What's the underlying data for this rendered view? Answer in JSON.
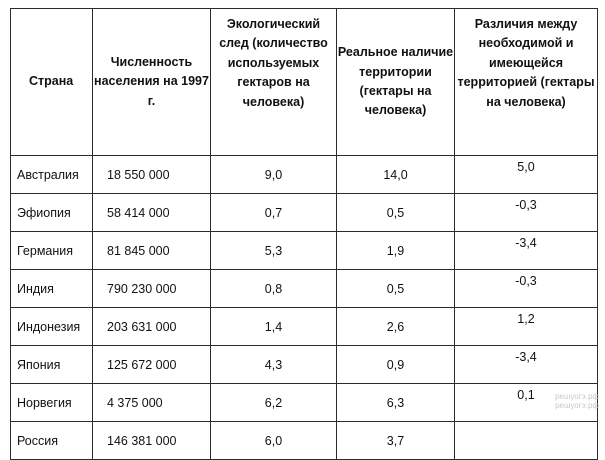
{
  "headers": {
    "country": "Страна",
    "population": "Численность населения на 1997 г.",
    "footprint": "Экологический след (количество используемых гектаров на человека)",
    "territory": "Реальное наличие территории (гектары на человека)",
    "difference": "Различия между необходимой и имеющейся территорией (гектары на человека)"
  },
  "rows": [
    {
      "country": "Австралия",
      "population": "18 550 000",
      "footprint": "9,0",
      "territory": "14,0",
      "difference": "5,0"
    },
    {
      "country": "Эфиопия",
      "population": "58 414 000",
      "footprint": "0,7",
      "territory": "0,5",
      "difference": "-0,3"
    },
    {
      "country": "Германия",
      "population": "81 845 000",
      "footprint": "5,3",
      "territory": "1,9",
      "difference": "-3,4"
    },
    {
      "country": "Индия",
      "population": "790 230 000",
      "footprint": "0,8",
      "territory": "0,5",
      "difference": "-0,3"
    },
    {
      "country": "Индонезия",
      "population": "203 631 000",
      "footprint": "1,4",
      "territory": "2,6",
      "difference": "1,2"
    },
    {
      "country": "Япония",
      "population": "125 672 000",
      "footprint": "4,3",
      "territory": "0,9",
      "difference": "-3,4"
    },
    {
      "country": "Норвегия",
      "population": "4 375 000",
      "footprint": "6,2",
      "territory": "6,3",
      "difference": "0,1"
    },
    {
      "country": "Россия",
      "population": "146 381 000",
      "footprint": "6,0",
      "territory": "3,7",
      "difference": ""
    }
  ],
  "watermark": {
    "line1": "решуогэ.рф",
    "line2": "решуогэ.рф"
  }
}
